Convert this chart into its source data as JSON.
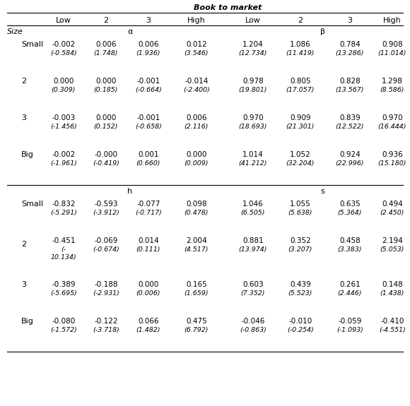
{
  "title_top": "Book to market",
  "col_headers": [
    "Low",
    "2",
    "3",
    "High",
    "Low",
    "2",
    "3",
    "High"
  ],
  "size_label": "Size",
  "section1_label_alpha": "α",
  "section1_label_beta": "β",
  "section2_label_h": "h",
  "section2_label_s": "s",
  "row_labels": [
    "Small",
    "2",
    "3",
    "Big"
  ],
  "alpha_vals": [
    [
      "-0.002",
      "0.006",
      "0.006",
      "0.012"
    ],
    [
      "0.000",
      "0.000",
      "-0.001",
      "-0.014"
    ],
    [
      "-0.003",
      "0.000",
      "-0.001",
      "0.006"
    ],
    [
      "-0.002",
      "-0.000",
      "0.001",
      "0.000"
    ]
  ],
  "alpha_tstats": [
    [
      "(-0.584)",
      "(1.748)",
      "(1.936)",
      "(3.546)"
    ],
    [
      "(0.309)",
      "(0.185)",
      "(-0.664)",
      "(-2.400)"
    ],
    [
      "(-1.456)",
      "(0.152)",
      "(-0.658)",
      "(2.116)"
    ],
    [
      "(-1.961)",
      "(-0.419)",
      "(0.660)",
      "(0.009)"
    ]
  ],
  "beta_vals": [
    [
      "1.204",
      "1.086",
      "0.784",
      "0.908"
    ],
    [
      "0.978",
      "0.805",
      "0.828",
      "1.298"
    ],
    [
      "0.970",
      "0.909",
      "0.839",
      "0.970"
    ],
    [
      "1.014",
      "1.052",
      "0.924",
      "0.936"
    ]
  ],
  "beta_tstats": [
    [
      "(12.734)",
      "(11.419)",
      "(13.286)",
      "(11.014)"
    ],
    [
      "(19.801)",
      "(17.057)",
      "(13.567)",
      "(8.586)"
    ],
    [
      "(18.693)",
      "(21.301)",
      "(12.522)",
      "(16.444)"
    ],
    [
      "(41.212)",
      "(32.204)",
      "(22.996)",
      "(15.180)"
    ]
  ],
  "h_vals": [
    [
      "-0.832",
      "-0.593",
      "-0.077",
      "0.098"
    ],
    [
      "-0.451",
      "-0.069",
      "0.014",
      "2.004"
    ],
    [
      "-0.389",
      "-0.188",
      "0.000",
      "0.165"
    ],
    [
      "-0.080",
      "-0.122",
      "0.066",
      "0.475"
    ]
  ],
  "h_tstats": [
    [
      "(-5.291)",
      "(-3.912)",
      "(-0.717)",
      "(0.478)"
    ],
    [
      "(-",
      "(-0.674)",
      "(0.111)",
      "(4.517)"
    ],
    [
      "(-5.695)",
      "(-2.931)",
      "(0.006)",
      "(1.659)"
    ],
    [
      "(-1.572)",
      "(-3.718)",
      "(1.482)",
      "(6.792)"
    ]
  ],
  "h_tstat_extra": [
    "",
    "10.134)",
    "",
    ""
  ],
  "s_vals": [
    [
      "1.046",
      "1.055",
      "0.635",
      "0.494"
    ],
    [
      "0.881",
      "0.352",
      "0.458",
      "2.194"
    ],
    [
      "0.603",
      "0.439",
      "0.261",
      "0.148"
    ],
    [
      "-0.046",
      "-0.010",
      "-0.059",
      "-0.410"
    ]
  ],
  "s_tstats": [
    [
      "(6.505)",
      "(5.638)",
      "(5.364)",
      "(2.450)"
    ],
    [
      "(13.974)",
      "(3.207)",
      "(3.383)",
      "(5.053)"
    ],
    [
      "(7.352)",
      "(5.523)",
      "(2.446)",
      "(1.438)"
    ],
    [
      "(-0.863)",
      "(-0.254)",
      "(-1.093)",
      "(-4.551)"
    ]
  ]
}
